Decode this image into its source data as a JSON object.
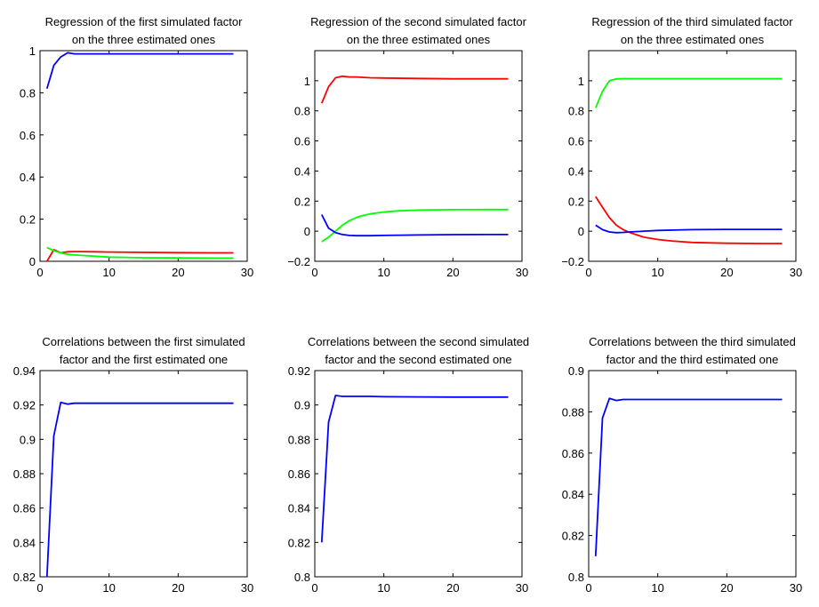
{
  "chart_data": [
    {
      "type": "line",
      "title": [
        "Regression of the first simulated factor",
        "on the three estimated ones"
      ],
      "xlim": [
        0,
        30
      ],
      "ylim": [
        0,
        1
      ],
      "xticks": [
        0,
        10,
        20,
        30
      ],
      "yticks": [
        0,
        0.2,
        0.4,
        0.6,
        0.8,
        1
      ],
      "ytick_labels": [
        "0",
        "0.2",
        "0.4",
        "0.6",
        "0.8",
        "1"
      ],
      "series": [
        {
          "color": "#0000ff",
          "x": [
            1,
            2,
            3,
            4,
            5,
            6,
            8,
            10,
            15,
            20,
            25,
            28
          ],
          "y": [
            0.82,
            0.93,
            0.97,
            0.99,
            0.985,
            0.985,
            0.985,
            0.985,
            0.985,
            0.985,
            0.985,
            0.985
          ]
        },
        {
          "color": "#ff0000",
          "x": [
            1,
            2,
            3,
            4,
            5,
            6,
            8,
            10,
            15,
            20,
            25,
            28
          ],
          "y": [
            0.0,
            0.055,
            0.04,
            0.045,
            0.046,
            0.046,
            0.045,
            0.044,
            0.042,
            0.041,
            0.04,
            0.04
          ]
        },
        {
          "color": "#00ff00",
          "x": [
            1,
            2,
            3,
            4,
            5,
            6,
            8,
            10,
            15,
            20,
            25,
            28
          ],
          "y": [
            0.065,
            0.05,
            0.04,
            0.033,
            0.03,
            0.028,
            0.024,
            0.02,
            0.017,
            0.016,
            0.015,
            0.015
          ]
        }
      ]
    },
    {
      "type": "line",
      "title": [
        "Regression of the second simulated factor",
        "on the three estimated ones"
      ],
      "xlim": [
        0,
        30
      ],
      "ylim": [
        -0.2,
        1.2
      ],
      "xticks": [
        0,
        10,
        20,
        30
      ],
      "yticks": [
        -0.2,
        0,
        0.2,
        0.4,
        0.6,
        0.8,
        1
      ],
      "ytick_labels": [
        "−0.2",
        "0",
        "0.2",
        "0.4",
        "0.6",
        "0.8",
        "1"
      ],
      "series": [
        {
          "color": "#ff0000",
          "x": [
            1,
            2,
            3,
            4,
            5,
            6,
            8,
            10,
            15,
            20,
            25,
            28
          ],
          "y": [
            0.85,
            0.96,
            1.02,
            1.03,
            1.025,
            1.025,
            1.02,
            1.018,
            1.015,
            1.013,
            1.013,
            1.013
          ]
        },
        {
          "color": "#00ff00",
          "x": [
            1,
            2,
            3,
            4,
            5,
            6,
            7,
            8,
            10,
            12,
            15,
            20,
            25,
            28
          ],
          "y": [
            -0.07,
            -0.04,
            0.0,
            0.04,
            0.07,
            0.09,
            0.105,
            0.115,
            0.128,
            0.135,
            0.14,
            0.143,
            0.144,
            0.144
          ]
        },
        {
          "color": "#0000ff",
          "x": [
            1,
            2,
            3,
            4,
            5,
            6,
            8,
            10,
            15,
            20,
            25,
            28
          ],
          "y": [
            0.11,
            0.02,
            -0.01,
            -0.022,
            -0.028,
            -0.03,
            -0.03,
            -0.028,
            -0.025,
            -0.023,
            -0.022,
            -0.022
          ]
        }
      ]
    },
    {
      "type": "line",
      "title": [
        "Regression of the third simulated factor",
        "on the three estimated ones"
      ],
      "xlim": [
        0,
        30
      ],
      "ylim": [
        -0.2,
        1.2
      ],
      "xticks": [
        0,
        10,
        20,
        30
      ],
      "yticks": [
        -0.2,
        0,
        0.2,
        0.4,
        0.6,
        0.8,
        1
      ],
      "ytick_labels": [
        "−0.2",
        "0",
        "0.2",
        "0.4",
        "0.6",
        "0.8",
        "1"
      ],
      "series": [
        {
          "color": "#00ff00",
          "x": [
            1,
            2,
            3,
            4,
            5,
            6,
            8,
            10,
            15,
            20,
            25,
            28
          ],
          "y": [
            0.82,
            0.93,
            1.0,
            1.012,
            1.014,
            1.014,
            1.014,
            1.014,
            1.014,
            1.014,
            1.014,
            1.014
          ]
        },
        {
          "color": "#ff0000",
          "x": [
            1,
            2,
            3,
            4,
            5,
            6,
            7,
            8,
            10,
            12,
            15,
            20,
            25,
            28
          ],
          "y": [
            0.23,
            0.16,
            0.09,
            0.04,
            0.01,
            -0.01,
            -0.025,
            -0.04,
            -0.055,
            -0.065,
            -0.075,
            -0.08,
            -0.082,
            -0.082
          ]
        },
        {
          "color": "#0000ff",
          "x": [
            1,
            2,
            3,
            4,
            5,
            6,
            8,
            10,
            15,
            20,
            25,
            28
          ],
          "y": [
            0.04,
            0.01,
            -0.005,
            -0.01,
            -0.008,
            -0.005,
            0.0,
            0.005,
            0.01,
            0.012,
            0.012,
            0.012
          ]
        }
      ]
    },
    {
      "type": "line",
      "title": [
        "Correlations between the first simulated",
        "factor and the first estimated one"
      ],
      "xlim": [
        0,
        30
      ],
      "ylim": [
        0.82,
        0.94
      ],
      "xticks": [
        0,
        10,
        20,
        30
      ],
      "yticks": [
        0.82,
        0.84,
        0.86,
        0.88,
        0.9,
        0.92,
        0.94
      ],
      "ytick_labels": [
        "0.82",
        "0.84",
        "0.86",
        "0.88",
        "0.9",
        "0.92",
        "0.94"
      ],
      "series": [
        {
          "color": "#0000ff",
          "x": [
            1,
            2,
            3,
            4,
            5,
            6,
            8,
            10,
            15,
            20,
            25,
            28
          ],
          "y": [
            0.82,
            0.902,
            0.9215,
            0.9205,
            0.921,
            0.921,
            0.921,
            0.921,
            0.921,
            0.921,
            0.921,
            0.921
          ]
        }
      ]
    },
    {
      "type": "line",
      "title": [
        "Correlations between the second simulated",
        "factor and the second estimated one"
      ],
      "xlim": [
        0,
        30
      ],
      "ylim": [
        0.8,
        0.92
      ],
      "xticks": [
        0,
        10,
        20,
        30
      ],
      "yticks": [
        0.8,
        0.82,
        0.84,
        0.86,
        0.88,
        0.9,
        0.92
      ],
      "ytick_labels": [
        "0.8",
        "0.82",
        "0.84",
        "0.86",
        "0.88",
        "0.9",
        "0.92"
      ],
      "series": [
        {
          "color": "#0000ff",
          "x": [
            1,
            2,
            3,
            4,
            5,
            6,
            8,
            10,
            15,
            20,
            25,
            28
          ],
          "y": [
            0.82,
            0.89,
            0.9055,
            0.905,
            0.905,
            0.905,
            0.905,
            0.9048,
            0.9047,
            0.9046,
            0.9046,
            0.9046
          ]
        }
      ]
    },
    {
      "type": "line",
      "title": [
        "Correlations between the third simulated",
        "factor and the third estimated one"
      ],
      "xlim": [
        0,
        30
      ],
      "ylim": [
        0.8,
        0.9
      ],
      "xticks": [
        0,
        10,
        20,
        30
      ],
      "yticks": [
        0.8,
        0.82,
        0.84,
        0.86,
        0.88,
        0.9
      ],
      "ytick_labels": [
        "0.8",
        "0.82",
        "0.84",
        "0.86",
        "0.88",
        "0.9"
      ],
      "series": [
        {
          "color": "#0000ff",
          "x": [
            1,
            2,
            3,
            4,
            5,
            6,
            8,
            10,
            15,
            20,
            25,
            28
          ],
          "y": [
            0.81,
            0.877,
            0.8865,
            0.8855,
            0.886,
            0.886,
            0.886,
            0.886,
            0.886,
            0.886,
            0.886,
            0.886
          ]
        }
      ]
    }
  ]
}
